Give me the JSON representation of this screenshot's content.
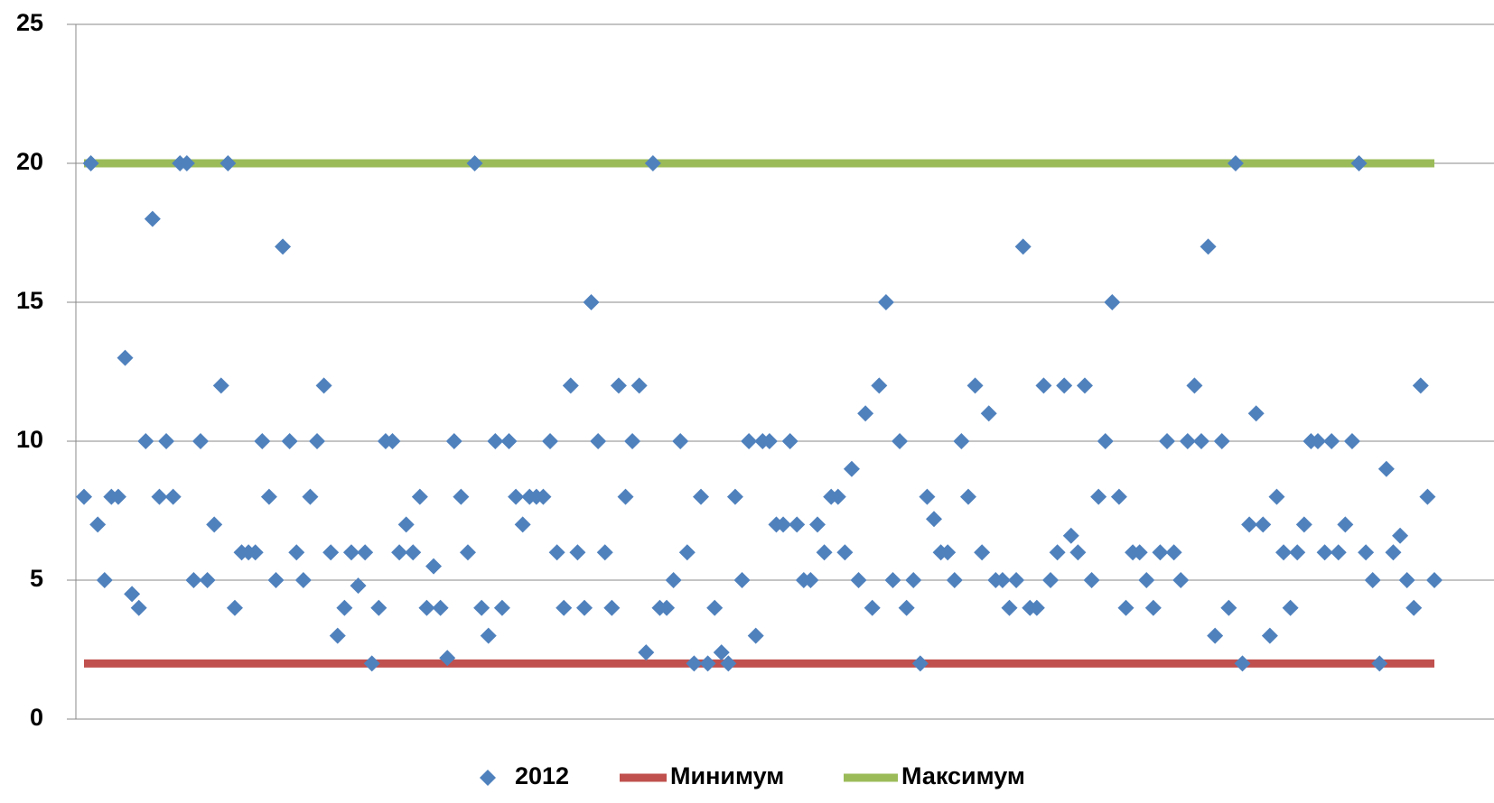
{
  "chart_data": {
    "type": "scatter",
    "categories": [
      null,
      null,
      null,
      null,
      null,
      null,
      null,
      null,
      null,
      null,
      null,
      null,
      null,
      null,
      null,
      null,
      null,
      null,
      null,
      null,
      null,
      null,
      null,
      null,
      null,
      null,
      null,
      null,
      null,
      null,
      null,
      null,
      null,
      null,
      null,
      null,
      null,
      null,
      null,
      null,
      null,
      null,
      null,
      null,
      null,
      null,
      null,
      null,
      null,
      null,
      null,
      null,
      null,
      null,
      null,
      null,
      null,
      null,
      null,
      null,
      null,
      null,
      null,
      null,
      null,
      null,
      null,
      null,
      null,
      null,
      null,
      null,
      null,
      null,
      null,
      null,
      null,
      null,
      null,
      null,
      null,
      null,
      null,
      null,
      null,
      null,
      null,
      null,
      null,
      null,
      null,
      null,
      null,
      null,
      null,
      null,
      null,
      null,
      null,
      null,
      null,
      null,
      null,
      null,
      null,
      null,
      null,
      null,
      null,
      null,
      null,
      null,
      null,
      null,
      null,
      null,
      null,
      null,
      null,
      null,
      null,
      null,
      null,
      null,
      null,
      null,
      null,
      null,
      null,
      null,
      null,
      null,
      null,
      null,
      null,
      null,
      null,
      null,
      null,
      null,
      null,
      null,
      null,
      null,
      null,
      null,
      null,
      null,
      null,
      null,
      null,
      null,
      null,
      null,
      null,
      null,
      null,
      null,
      null,
      null,
      null,
      null,
      null,
      null,
      null,
      null,
      null,
      null,
      null,
      null,
      null,
      null,
      null,
      null,
      null,
      null,
      null,
      null,
      null,
      null,
      null,
      null,
      null,
      null,
      null,
      null,
      null,
      null,
      null,
      null,
      null,
      null,
      null,
      null,
      null,
      null,
      null,
      null
    ],
    "series": [
      {
        "name": "2012",
        "type": "scatter",
        "color": "#4f81bd",
        "values": [
          8,
          20,
          7,
          5,
          8,
          8,
          13,
          4.5,
          4,
          10,
          18,
          8,
          10,
          8,
          20,
          20,
          5,
          10,
          5,
          7,
          12,
          20,
          4,
          6,
          6,
          6,
          10,
          8,
          5,
          17,
          10,
          6,
          5,
          8,
          10,
          12,
          6,
          3,
          4,
          6,
          4.8,
          6,
          2,
          4,
          10,
          10,
          6,
          7,
          6,
          8,
          4,
          5.5,
          4,
          2.2,
          10,
          8,
          6,
          20,
          4,
          3,
          10,
          4,
          10,
          8,
          7,
          8,
          8,
          8,
          10,
          6,
          4,
          12,
          6,
          4,
          15,
          10,
          6,
          4,
          12,
          8,
          10,
          12,
          2.4,
          20,
          4,
          4,
          5,
          10,
          6,
          2,
          8,
          2,
          4,
          2.4,
          2,
          8,
          5,
          10,
          3,
          10,
          10,
          7,
          7,
          10,
          7,
          5,
          5,
          7,
          6,
          8,
          8,
          6,
          9,
          5,
          11,
          4,
          12,
          15,
          5,
          10,
          4,
          5,
          2,
          8,
          7.2,
          6,
          6,
          5,
          10,
          8,
          12,
          6,
          11,
          5,
          5,
          4,
          5,
          17,
          4,
          4,
          12,
          5,
          6,
          12,
          6.6,
          6,
          12,
          5,
          8,
          10,
          15,
          8,
          4,
          6,
          6,
          5,
          4,
          6,
          10,
          6,
          5,
          10,
          12,
          10,
          17,
          3,
          10,
          4,
          20,
          2,
          7,
          11,
          7,
          3,
          8,
          6,
          4,
          6,
          7,
          10,
          10,
          6,
          10,
          6,
          7,
          10,
          20,
          6,
          5,
          2,
          9,
          6,
          6.6,
          5,
          4,
          12,
          8,
          5
        ]
      },
      {
        "name": "Минимум",
        "type": "line",
        "color": "#c0504d",
        "values": [
          2,
          2,
          2,
          2,
          2,
          2,
          2,
          2,
          2,
          2,
          2,
          2,
          2,
          2,
          2,
          2,
          2,
          2,
          2,
          2,
          2,
          2,
          2,
          2,
          2,
          2,
          2,
          2,
          2,
          2,
          2,
          2,
          2,
          2,
          2,
          2,
          2,
          2,
          2,
          2,
          2,
          2,
          2,
          2,
          2,
          2,
          2,
          2,
          2,
          2,
          2,
          2,
          2,
          2,
          2,
          2,
          2,
          2,
          2,
          2,
          2,
          2,
          2,
          2,
          2,
          2,
          2,
          2,
          2,
          2,
          2,
          2,
          2,
          2,
          2,
          2,
          2,
          2,
          2,
          2,
          2,
          2,
          2,
          2,
          2,
          2,
          2,
          2,
          2,
          2,
          2,
          2,
          2,
          2,
          2,
          2,
          2,
          2,
          2,
          2,
          2,
          2,
          2,
          2,
          2,
          2,
          2,
          2,
          2,
          2,
          2,
          2,
          2,
          2,
          2,
          2,
          2,
          2,
          2,
          2,
          2,
          2,
          2,
          2,
          2,
          2,
          2,
          2,
          2,
          2,
          2,
          2,
          2,
          2,
          2,
          2,
          2,
          2,
          2,
          2,
          2,
          2,
          2,
          2,
          2,
          2,
          2,
          2,
          2,
          2,
          2,
          2,
          2,
          2,
          2,
          2,
          2,
          2,
          2,
          2,
          2,
          2,
          2,
          2,
          2,
          2,
          2,
          2,
          2,
          2,
          2,
          2,
          2,
          2,
          2,
          2,
          2,
          2,
          2,
          2,
          2,
          2,
          2,
          2,
          2,
          2,
          2,
          2,
          2,
          2,
          2,
          2,
          2,
          2,
          2,
          2,
          2,
          2
        ]
      },
      {
        "name": "Максимум",
        "type": "line",
        "color": "#9bbb59",
        "values": [
          20,
          20,
          20,
          20,
          20,
          20,
          20,
          20,
          20,
          20,
          20,
          20,
          20,
          20,
          20,
          20,
          20,
          20,
          20,
          20,
          20,
          20,
          20,
          20,
          20,
          20,
          20,
          20,
          20,
          20,
          20,
          20,
          20,
          20,
          20,
          20,
          20,
          20,
          20,
          20,
          20,
          20,
          20,
          20,
          20,
          20,
          20,
          20,
          20,
          20,
          20,
          20,
          20,
          20,
          20,
          20,
          20,
          20,
          20,
          20,
          20,
          20,
          20,
          20,
          20,
          20,
          20,
          20,
          20,
          20,
          20,
          20,
          20,
          20,
          20,
          20,
          20,
          20,
          20,
          20,
          20,
          20,
          20,
          20,
          20,
          20,
          20,
          20,
          20,
          20,
          20,
          20,
          20,
          20,
          20,
          20,
          20,
          20,
          20,
          20,
          20,
          20,
          20,
          20,
          20,
          20,
          20,
          20,
          20,
          20,
          20,
          20,
          20,
          20,
          20,
          20,
          20,
          20,
          20,
          20,
          20,
          20,
          20,
          20,
          20,
          20,
          20,
          20,
          20,
          20,
          20,
          20,
          20,
          20,
          20,
          20,
          20,
          20,
          20,
          20,
          20,
          20,
          20,
          20,
          20,
          20,
          20,
          20,
          20,
          20,
          20,
          20,
          20,
          20,
          20,
          20,
          20,
          20,
          20,
          20,
          20,
          20,
          20,
          20,
          20,
          20,
          20,
          20,
          20,
          20,
          20,
          20,
          20,
          20,
          20,
          20,
          20,
          20,
          20,
          20,
          20,
          20,
          20,
          20,
          20,
          20,
          20,
          20,
          20,
          20,
          20,
          20,
          20,
          20,
          20,
          20,
          20,
          20
        ]
      }
    ],
    "ylim": [
      0,
      25
    ],
    "yticks": [
      0,
      5,
      10,
      15,
      20,
      25
    ],
    "grid": true,
    "legend": "bottom"
  }
}
